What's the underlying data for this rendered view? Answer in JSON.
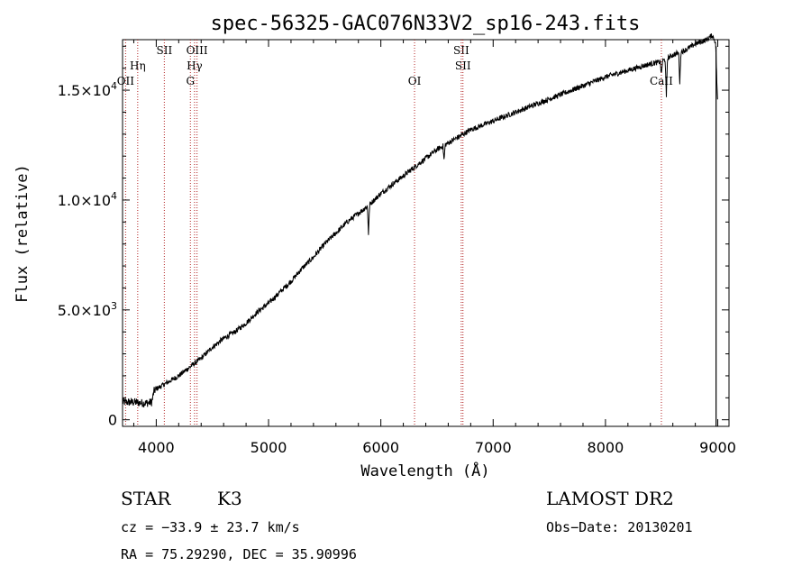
{
  "chart_data": {
    "type": "line",
    "title": "spec-56325-GAC076N33V2_sp16-243.fits",
    "xlabel": "Wavelength (Å)",
    "ylabel": "Flux (relative)",
    "xlim": [
      3700,
      9100
    ],
    "ylim": [
      -300,
      17300
    ],
    "xticks": [
      {
        "value": 4000,
        "label": "4000"
      },
      {
        "value": 5000,
        "label": "5000"
      },
      {
        "value": 6000,
        "label": "6000"
      },
      {
        "value": 7000,
        "label": "7000"
      },
      {
        "value": 8000,
        "label": "8000"
      },
      {
        "value": 9000,
        "label": "9000"
      }
    ],
    "yticks": [
      {
        "value": 0,
        "mant": "0",
        "exp": ""
      },
      {
        "value": 5000,
        "mant": "5.0×10",
        "exp": "3"
      },
      {
        "value": 10000,
        "mant": "1.0×10",
        "exp": "4"
      },
      {
        "value": 15000,
        "mant": "1.5×10",
        "exp": "4"
      }
    ],
    "series": [
      {
        "name": "spectrum",
        "x": [
          3700,
          3800,
          3900,
          3960,
          3980,
          4000,
          4100,
          4200,
          4300,
          4400,
          4500,
          4600,
          4700,
          4800,
          4900,
          5000,
          5100,
          5200,
          5300,
          5400,
          5500,
          5600,
          5700,
          5800,
          5900,
          6000,
          6100,
          6200,
          6300,
          6400,
          6500,
          6600,
          6700,
          6800,
          6900,
          7000,
          7200,
          7400,
          7600,
          7800,
          8000,
          8200,
          8400,
          8500,
          8600,
          8700,
          8800,
          8900,
          8950,
          8980,
          9000
        ],
        "y": [
          800,
          800,
          750,
          800,
          1300,
          1400,
          1700,
          2000,
          2400,
          2800,
          3300,
          3700,
          4000,
          4400,
          4900,
          5300,
          5800,
          6300,
          6900,
          7400,
          8000,
          8500,
          9000,
          9400,
          9800,
          10300,
          10700,
          11100,
          11500,
          11900,
          12300,
          12600,
          12900,
          13200,
          13400,
          13600,
          14000,
          14400,
          14800,
          15200,
          15600,
          15900,
          16200,
          16300,
          16600,
          16800,
          17100,
          17300,
          17500,
          17200,
          14200
        ]
      }
    ],
    "absorption_features": [
      {
        "x": 5890,
        "depth": 1300
      },
      {
        "x": 6563,
        "depth": 700
      },
      {
        "x": 8498,
        "depth": 600
      },
      {
        "x": 8542,
        "depth": 1800
      },
      {
        "x": 8662,
        "depth": 1400
      }
    ],
    "line_markers": [
      {
        "x": 3727,
        "label": "OII",
        "level": 4
      },
      {
        "x": 3835,
        "label": "Hη",
        "level": 2
      },
      {
        "x": 4072,
        "label": "SII",
        "level": 1
      },
      {
        "x": 4304,
        "label": "G",
        "level": 4
      },
      {
        "x": 4341,
        "label": "Hγ",
        "level": 3
      },
      {
        "x": 4363,
        "label": "OIII",
        "level": 1
      },
      {
        "x": 6300,
        "label": "OI",
        "level": 4
      },
      {
        "x": 6716,
        "label": "SII",
        "level": 1
      },
      {
        "x": 6731,
        "label": "SII",
        "level": 2
      },
      {
        "x": 8498,
        "label": "CaII",
        "level": 4
      }
    ]
  },
  "info": {
    "class_label": "STAR",
    "subclass": "K3",
    "survey": "LAMOST DR2",
    "cz_line": "cz = −33.9 ± 23.7 km/s",
    "obs_date": "Obs−Date: 20130201",
    "radec": "RA =  75.29290, DEC =  35.90996"
  },
  "colors": {
    "axis": "#000000",
    "spectrum": "#000000",
    "marker": "#b22222"
  }
}
